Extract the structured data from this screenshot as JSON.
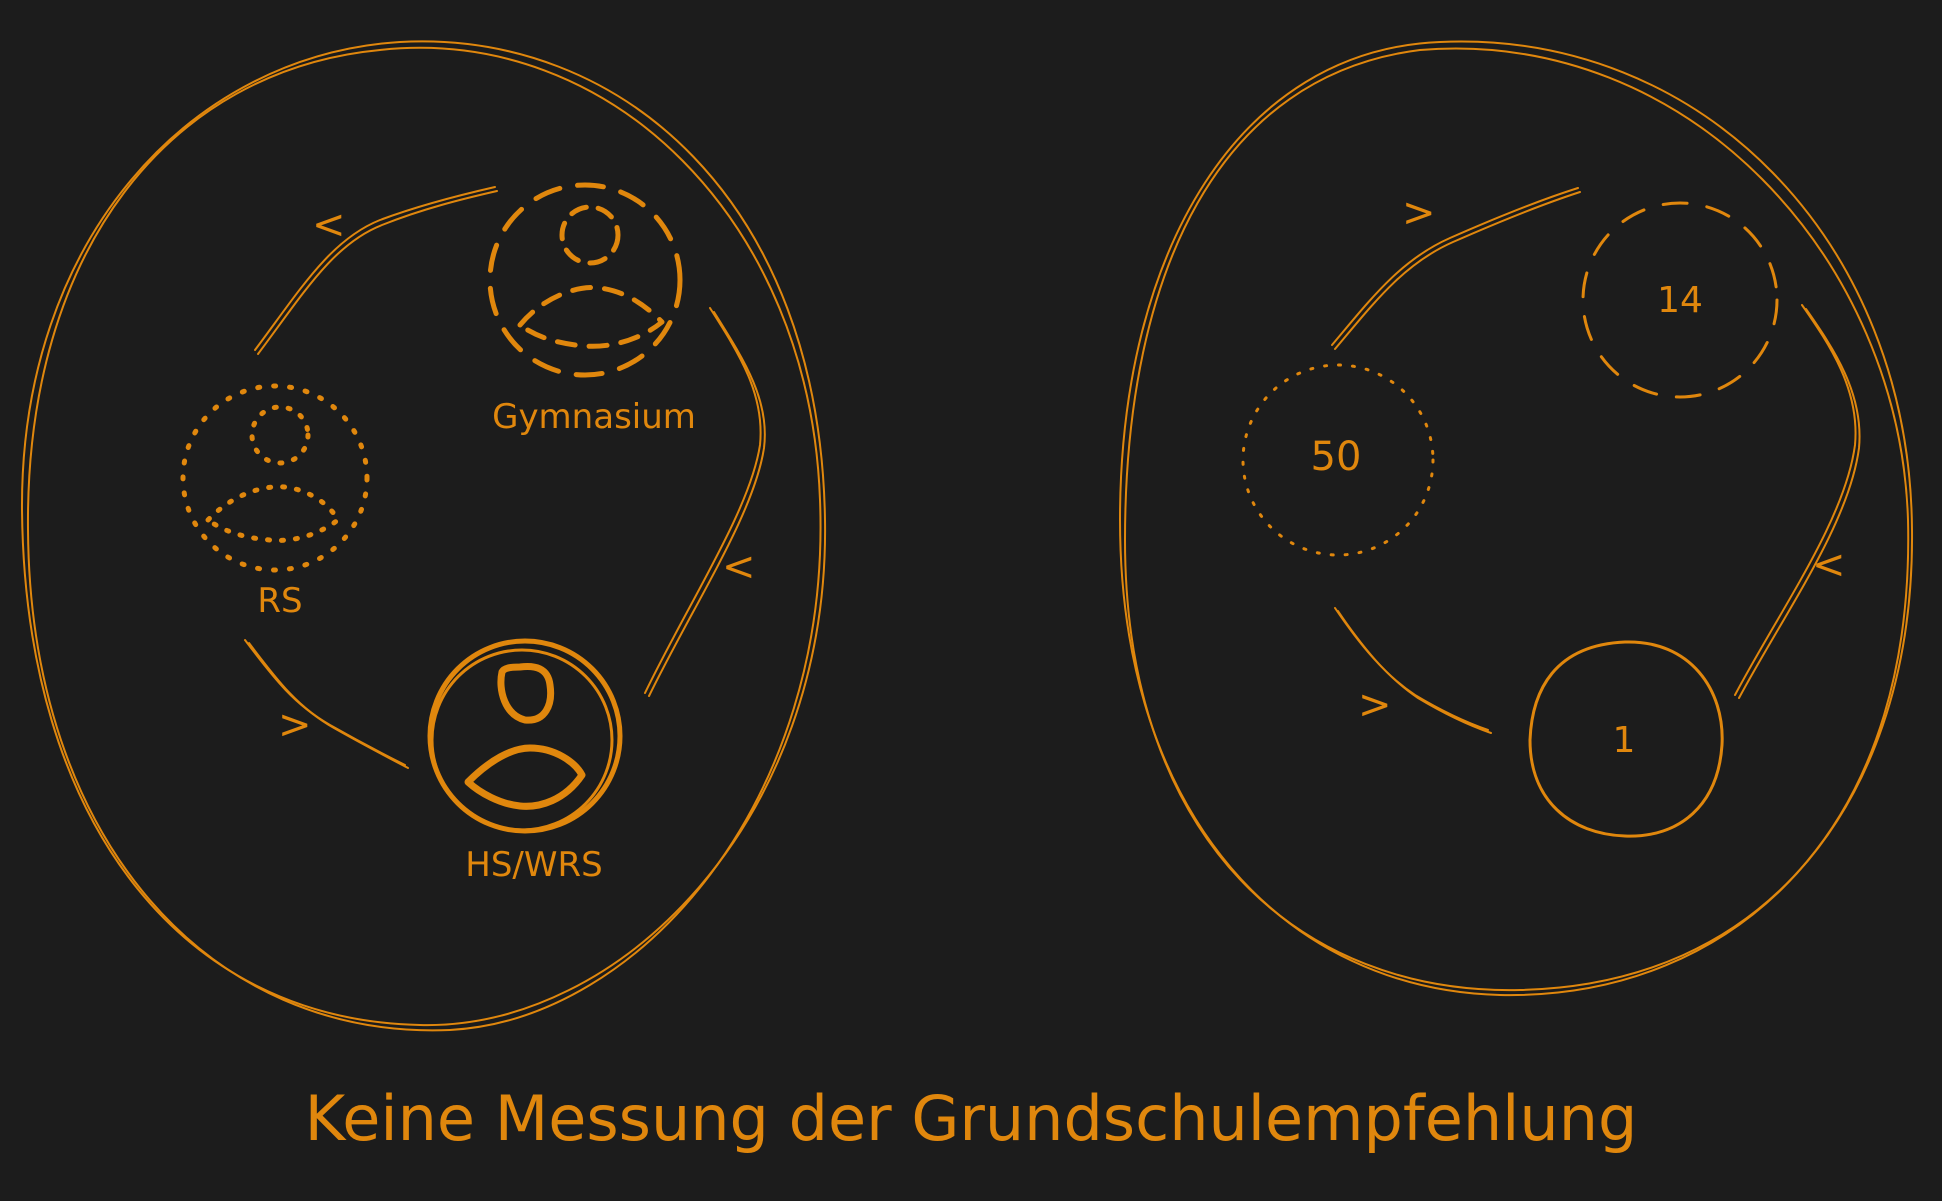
{
  "left_diagram": {
    "labels": {
      "gymnasium": "Gymnasium",
      "rs": "RS",
      "hs_wrs": "HS/WRS"
    },
    "arrows": [
      "<",
      "<",
      ">"
    ]
  },
  "right_diagram": {
    "values": {
      "top": "14",
      "left": "50",
      "bottom": "1"
    },
    "arrows": [
      ">",
      "<",
      ">"
    ]
  },
  "caption": "Keine Messung der Grundschulempfehlung",
  "colors": {
    "accent": "#e0870d",
    "background": "#1c1c1c"
  },
  "icons": {
    "person": "person-icon"
  }
}
